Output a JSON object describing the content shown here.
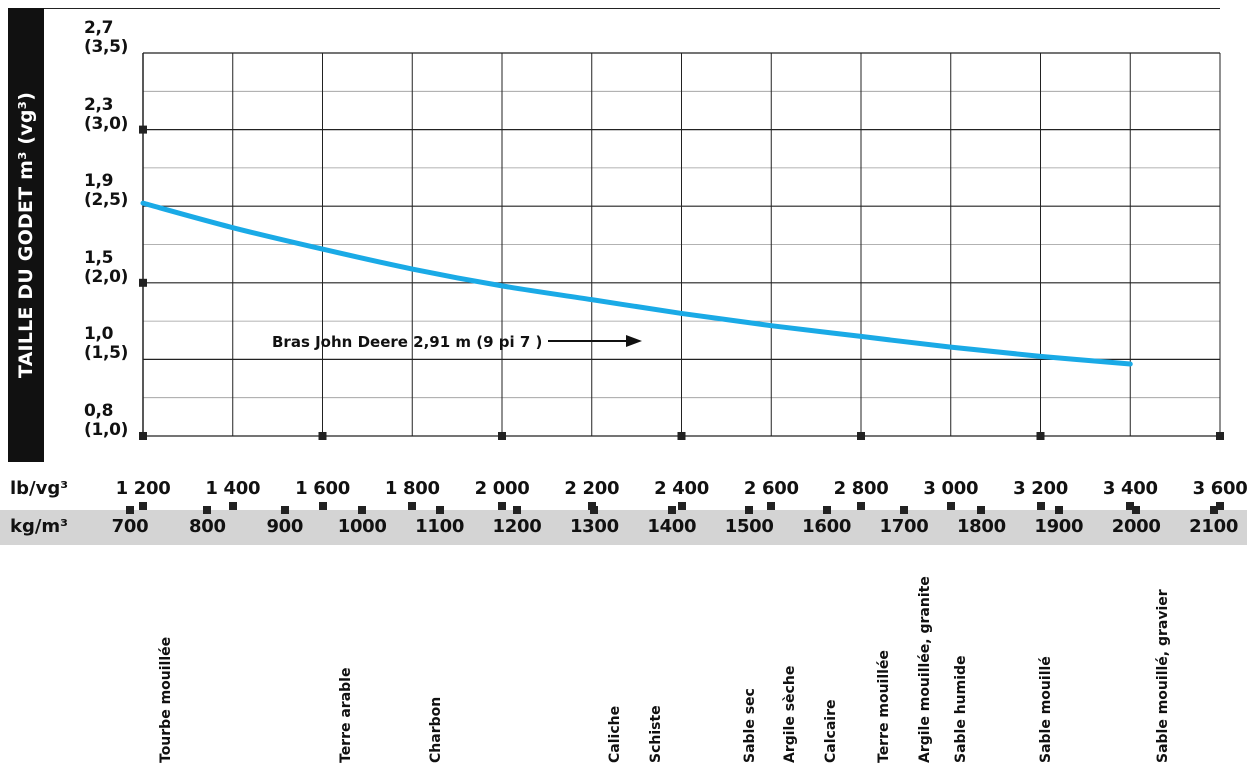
{
  "y_axis_title": "TAILLE DU GODET m³ (vg³)",
  "chart_data": {
    "type": "line",
    "y_ticks": [
      {
        "m3": "0,8",
        "vg3": "(1,0)"
      },
      {
        "m3": "1,0",
        "vg3": "(1,5)"
      },
      {
        "m3": "1,5",
        "vg3": "(2,0)"
      },
      {
        "m3": "1,9",
        "vg3": "(2,5)"
      },
      {
        "m3": "2,3",
        "vg3": "(3,0)"
      },
      {
        "m3": "2,7",
        "vg3": "(3,5)"
      }
    ],
    "lb_unit": "lb/vg³",
    "lb_ticks": [
      "1 200",
      "1 400",
      "1 600",
      "1 800",
      "2 000",
      "2 200",
      "2 400",
      "2 600",
      "2 800",
      "3 000",
      "3 200",
      "3 400",
      "3 600"
    ],
    "kg_unit": "kg/m³",
    "kg_ticks": [
      "700",
      "800",
      "900",
      "1000",
      "1100",
      "1200",
      "1300",
      "1400",
      "1500",
      "1600",
      "1700",
      "1800",
      "1900",
      "2000",
      "2100"
    ],
    "xlim_lb": [
      1200,
      3600
    ],
    "ylim_vg3": [
      1.0,
      3.5
    ],
    "series": [
      {
        "name": "Bras John Deere 2,91 m (9 pi 7 )",
        "color": "#1aaae6",
        "points_lb_vg3": [
          [
            1200,
            2.52
          ],
          [
            1400,
            2.36
          ],
          [
            1600,
            2.22
          ],
          [
            1800,
            2.09
          ],
          [
            2000,
            1.98
          ],
          [
            2200,
            1.89
          ],
          [
            2400,
            1.8
          ],
          [
            2600,
            1.72
          ],
          [
            2800,
            1.65
          ],
          [
            3000,
            1.58
          ],
          [
            3200,
            1.52
          ],
          [
            3400,
            1.47
          ]
        ]
      }
    ],
    "annotation": "Bras John Deere 2,91 m (9 pi 7 )",
    "materials": [
      {
        "name": "Tourbe mouillée",
        "lb": 1250
      },
      {
        "name": "Terre arable",
        "lb": 1650
      },
      {
        "name": "Charbon",
        "lb": 1850
      },
      {
        "name": "Caliche",
        "lb": 2250
      },
      {
        "name": "Schiste",
        "lb": 2340
      },
      {
        "name": "Sable sec",
        "lb": 2550
      },
      {
        "name": "Argile sèche",
        "lb": 2640
      },
      {
        "name": "Calcaire",
        "lb": 2730
      },
      {
        "name": "Terre mouillée",
        "lb": 2850
      },
      {
        "name": "Argile mouillée, granite",
        "lb": 2940
      },
      {
        "name": "Sable humide",
        "lb": 3020
      },
      {
        "name": "Sable mouillé",
        "lb": 3210
      },
      {
        "name": "Sable mouillé, gravier",
        "lb": 3470
      }
    ]
  }
}
